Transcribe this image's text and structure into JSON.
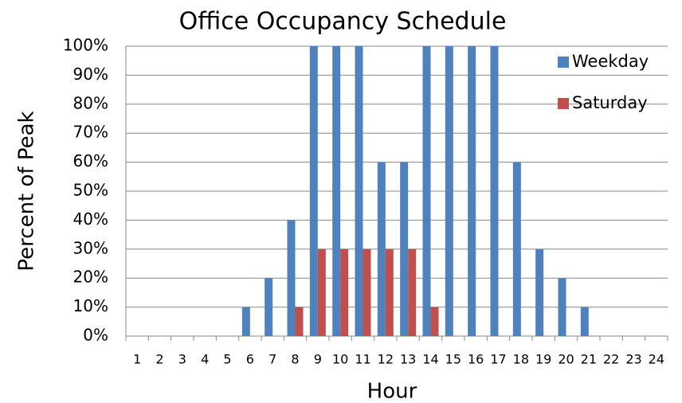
{
  "chart_data": {
    "type": "bar",
    "title": "Office Occupancy Schedule",
    "x_label": "Hour",
    "y_label": "Percent of Peak",
    "categories": [
      "1",
      "2",
      "3",
      "4",
      "5",
      "6",
      "7",
      "8",
      "9",
      "10",
      "11",
      "12",
      "13",
      "14",
      "15",
      "16",
      "17",
      "18",
      "19",
      "20",
      "21",
      "22",
      "23",
      "24"
    ],
    "series": [
      {
        "name": "Weekday",
        "color": "#4f81bd",
        "values": [
          0,
          0,
          0,
          0,
          0,
          10,
          20,
          40,
          100,
          100,
          100,
          60,
          60,
          100,
          100,
          100,
          100,
          60,
          30,
          20,
          10,
          0,
          0,
          0
        ]
      },
      {
        "name": "Saturday",
        "color": "#c0504d",
        "values": [
          0,
          0,
          0,
          0,
          0,
          0,
          0,
          10,
          30,
          30,
          30,
          30,
          30,
          10,
          0,
          0,
          0,
          0,
          0,
          0,
          0,
          0,
          0,
          0
        ]
      }
    ],
    "ylim": [
      0,
      100
    ],
    "yticks": [
      {
        "value": 0,
        "label": "0%"
      },
      {
        "value": 10,
        "label": "10%"
      },
      {
        "value": 20,
        "label": "20%"
      },
      {
        "value": 30,
        "label": "30%"
      },
      {
        "value": 40,
        "label": "40%"
      },
      {
        "value": 50,
        "label": "50%"
      },
      {
        "value": 60,
        "label": "60%"
      },
      {
        "value": 70,
        "label": "70%"
      },
      {
        "value": 80,
        "label": "80%"
      },
      {
        "value": 90,
        "label": "90%"
      },
      {
        "value": 100,
        "label": "100%"
      }
    ],
    "grid": true,
    "legend": "right"
  }
}
